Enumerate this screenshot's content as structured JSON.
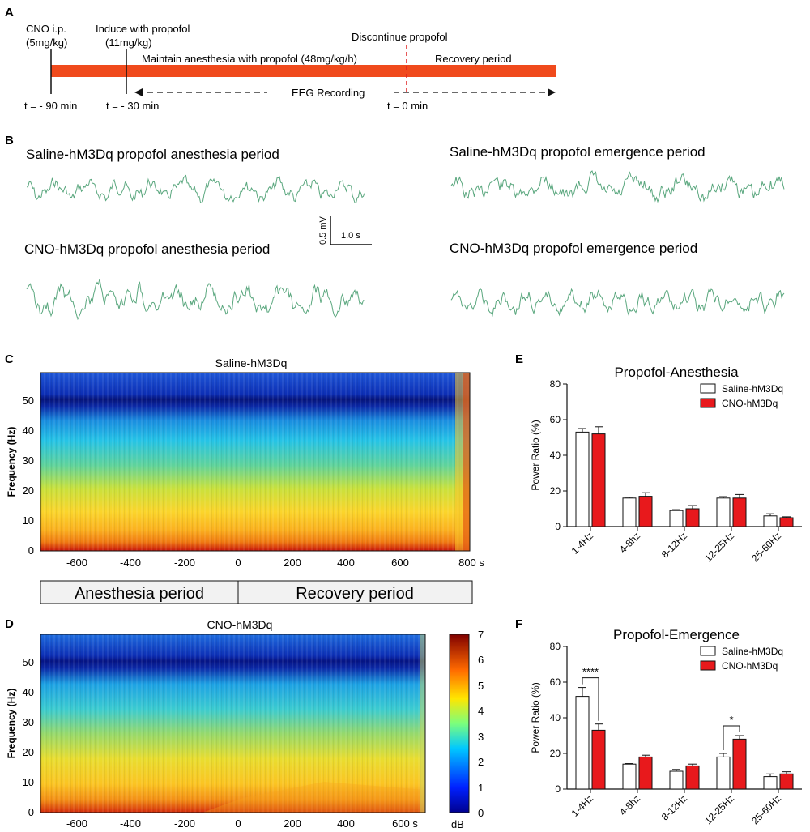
{
  "panels": {
    "A": "A",
    "B": "B",
    "C": "C",
    "D": "D",
    "E": "E",
    "F": "F"
  },
  "timeline": {
    "cno_line1": "CNO  i.p.",
    "cno_line2": "(5mg/kg)",
    "induce_line1": "Induce with propofol",
    "induce_line2": "(11mg/kg)",
    "discontinue": "Discontinue  propofol",
    "maintain": "Maintain anesthesia with propofol (48mg/kg/h)",
    "recovery": "Recovery period",
    "eeg": "EEG Recording",
    "t_minus_90": "t = - 90 min",
    "t_minus_30": "t = - 30 min",
    "t_zero": "t = 0 min",
    "bar_color": "#f04a1c",
    "dash_color": "#e02020"
  },
  "traces": {
    "saline_anesthesia": "Saline-hM3Dq propofol anesthesia period",
    "saline_emergence": "Saline-hM3Dq propofol emergence period",
    "cno_anesthesia": "CNO-hM3Dq propofol anesthesia period",
    "cno_emergence": "CNO-hM3Dq  propofol emergence period",
    "scale_v": "0.5 mV",
    "scale_t": "1.0 s",
    "trace_color": "#5aa77e"
  },
  "spectrogram_c": {
    "title": "Saline-hM3Dq",
    "ylabel": "Frequency (Hz)",
    "yticks": [
      "0",
      "10",
      "20",
      "30",
      "40",
      "50"
    ],
    "xticks": [
      "-600",
      "-400",
      "-200",
      "0",
      "200",
      "400",
      "600",
      "800 s"
    ]
  },
  "period_bar": {
    "anesthesia": "Anesthesia period",
    "recovery": "Recovery period"
  },
  "spectrogram_d": {
    "title": "CNO-hM3Dq",
    "ylabel": "Frequency (Hz)",
    "yticks": [
      "0",
      "10",
      "20",
      "30",
      "40",
      "50"
    ],
    "xticks": [
      "-600",
      "-400",
      "-200",
      "0",
      "200",
      "400",
      "600 s"
    ]
  },
  "colorbar": {
    "ticks": [
      "0",
      "1",
      "2",
      "3",
      "4",
      "5",
      "6",
      "7"
    ],
    "unit": "dB"
  },
  "chart_data": [
    {
      "type": "bar",
      "title": "Propofol-Anesthesia",
      "xlabel": "",
      "ylabel": "Power Ratio (%)",
      "ylim": [
        0,
        80
      ],
      "yticks": [
        "0",
        "20",
        "40",
        "60",
        "80"
      ],
      "categories": [
        "1-4Hz",
        "4-8hz",
        "8-12Hz",
        "12-25Hz",
        "25-60Hz"
      ],
      "series": [
        {
          "name": "Saline-hM3Dq",
          "color": "#ffffff",
          "values": [
            53,
            16,
            9,
            16,
            6
          ],
          "errors": [
            2,
            0.5,
            0.5,
            0.8,
            1.2
          ]
        },
        {
          "name": "CNO-hM3Dq",
          "color": "#e8191c",
          "values": [
            52,
            17,
            10,
            16,
            5
          ],
          "errors": [
            4,
            2,
            1.8,
            2,
            0.5
          ]
        }
      ],
      "annotations": []
    },
    {
      "type": "bar",
      "title": "Propofol-Emergence",
      "xlabel": "",
      "ylabel": "Power Ratio (%)",
      "ylim": [
        0,
        80
      ],
      "yticks": [
        "0",
        "20",
        "40",
        "60",
        "80"
      ],
      "categories": [
        "1-4Hz",
        "4-8hz",
        "8-12Hz",
        "12-25Hz",
        "25-60Hz"
      ],
      "series": [
        {
          "name": "Saline-hM3Dq",
          "color": "#ffffff",
          "values": [
            52,
            14,
            10,
            18,
            7
          ],
          "errors": [
            5,
            0.3,
            1,
            2,
            1.5
          ]
        },
        {
          "name": "CNO-hM3Dq",
          "color": "#e8191c",
          "values": [
            33,
            18,
            13,
            28,
            8.5
          ],
          "errors": [
            3.5,
            1,
            1,
            2,
            1.2
          ]
        }
      ],
      "annotations": [
        {
          "category": "1-4Hz",
          "label": "****"
        },
        {
          "category": "12-25Hz",
          "label": "*"
        }
      ]
    }
  ]
}
